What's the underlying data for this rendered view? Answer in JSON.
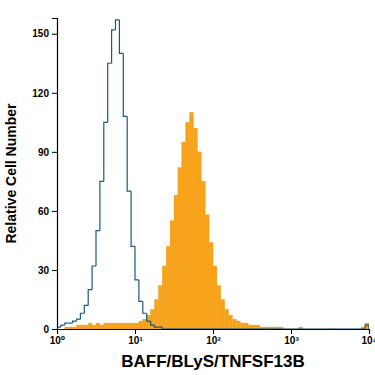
{
  "chart_data": {
    "type": "histogram",
    "xlabel": "BAFF/BLyS/TNFSF13B",
    "ylabel": "Relative Cell Number",
    "log": "x",
    "xlim": [
      1,
      10000
    ],
    "ylim": [
      0,
      158
    ],
    "xticks": [
      {
        "value": 1,
        "label": "10⁰"
      },
      {
        "value": 10,
        "label": "10¹"
      },
      {
        "value": 100,
        "label": "10²"
      },
      {
        "value": 1000,
        "label": "10³"
      },
      {
        "value": 10000,
        "label": "10⁴"
      }
    ],
    "yticks": [
      0,
      30,
      60,
      90,
      120,
      150
    ],
    "bins": [
      1,
      1.122,
      1.259,
      1.413,
      1.585,
      1.778,
      1.995,
      2.239,
      2.512,
      2.818,
      3.162,
      3.548,
      3.981,
      4.467,
      5.012,
      5.623,
      6.31,
      7.079,
      7.943,
      8.913,
      10,
      11.22,
      12.59,
      14.13,
      15.85,
      17.78,
      19.95,
      22.39,
      25.12,
      28.18,
      31.62,
      35.48,
      39.81,
      44.67,
      50.12,
      56.23,
      63.1,
      70.79,
      79.43,
      89.13,
      100,
      112.2,
      125.9,
      141.3,
      158.5,
      177.8,
      199.5,
      223.9,
      251.2,
      281.8,
      316.2,
      354.8,
      398.1,
      446.7,
      501.2,
      562.3,
      631,
      707.9,
      794.3,
      891.3,
      1000,
      1122,
      1259,
      1413,
      1585,
      1778,
      1995,
      2239,
      2512,
      2818,
      3162,
      3548,
      3981,
      4467,
      5012,
      5623,
      6310,
      7079,
      7943,
      8913,
      10000
    ],
    "series": [
      {
        "type": "bar",
        "color": "#f7a21b",
        "values": [
          0,
          0,
          1,
          1,
          1,
          2,
          2,
          2,
          3,
          2,
          3,
          2,
          3,
          3,
          3,
          3,
          3,
          3,
          3,
          3,
          3,
          4,
          5,
          7,
          10,
          15,
          22,
          32,
          42,
          55,
          68,
          82,
          95,
          105,
          110,
          102,
          90,
          75,
          58,
          44,
          32,
          22,
          15,
          10,
          7,
          5,
          4,
          3,
          3,
          2,
          2,
          2,
          1,
          1,
          1,
          1,
          1,
          1,
          0,
          0,
          0,
          0,
          1,
          0,
          0,
          0,
          0,
          0,
          0,
          0,
          0,
          0,
          0,
          0,
          0,
          0,
          0,
          0,
          1,
          3
        ]
      },
      {
        "type": "step",
        "color": "#1b5a7a",
        "values": [
          1,
          2,
          3,
          3,
          4,
          5,
          8,
          12,
          20,
          32,
          50,
          75,
          105,
          135,
          152,
          157,
          140,
          108,
          70,
          42,
          25,
          14,
          8,
          4,
          2,
          1,
          1,
          0,
          0,
          0,
          0,
          0,
          0,
          0,
          0,
          0,
          0,
          0,
          0,
          0,
          0,
          0,
          0,
          0,
          0,
          0,
          0,
          0,
          0,
          0,
          0,
          0,
          0,
          0,
          0,
          0,
          0,
          0,
          0,
          0,
          0,
          0,
          0,
          0,
          0,
          0,
          0,
          0,
          0,
          0,
          0,
          0,
          0,
          0,
          0,
          0,
          0,
          0,
          0,
          2
        ]
      }
    ]
  }
}
